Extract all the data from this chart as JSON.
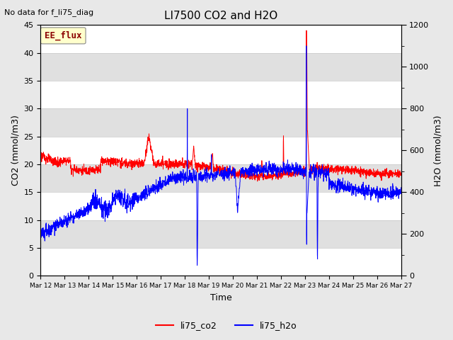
{
  "title": "LI7500 CO2 and H2O",
  "xlabel": "Time",
  "ylabel_left": "CO2 (mmol/m3)",
  "ylabel_right": "H2O (mmol/m3)",
  "ylim_left": [
    0,
    45
  ],
  "ylim_right": [
    0,
    1200
  ],
  "no_data_text": "No data for f_li75_diag",
  "ee_flux_label": "EE_flux",
  "legend_labels": [
    "li75_co2",
    "li75_h2o"
  ],
  "legend_colors": [
    "red",
    "blue"
  ],
  "xtick_labels": [
    "Mar 12",
    "Mar 13",
    "Mar 14",
    "Mar 15",
    "Mar 16",
    "Mar 17",
    "Mar 18",
    "Mar 19",
    "Mar 20",
    "Mar 21",
    "Mar 22",
    "Mar 23",
    "Mar 24",
    "Mar 25",
    "Mar 26",
    "Mar 27"
  ],
  "bg_color": "#e8e8e8",
  "plot_bg_white": "#ffffff",
  "plot_bg_gray": "#e8e8e8",
  "band_color": "#e0e0e0",
  "ee_flux_bg": "#ffffcc",
  "ee_flux_text_color": "#8b0000",
  "title_fontsize": 11,
  "axis_fontsize": 9,
  "tick_fontsize": 8
}
